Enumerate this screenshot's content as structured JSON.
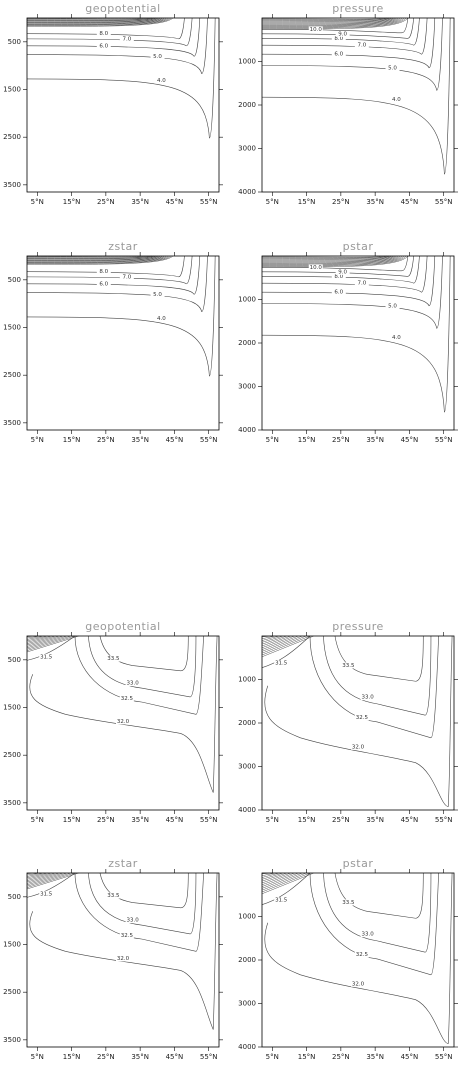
{
  "chart_data": [
    {
      "type": "contour",
      "title": "geopotential",
      "xlim": [
        2,
        58
      ],
      "xticks": [
        {
          "value": 5,
          "label": "5°N"
        },
        {
          "value": 15,
          "label": "15°N"
        },
        {
          "value": 25,
          "label": "25°N"
        },
        {
          "value": 35,
          "label": "35°N"
        },
        {
          "value": 45,
          "label": "45°N"
        },
        {
          "value": 55,
          "label": "55°N"
        }
      ],
      "ylim": [
        0,
        3650
      ],
      "y_inverted": true,
      "yticks": [
        500,
        1500,
        2500,
        3500
      ],
      "style": "temperature",
      "levels": [
        {
          "value": 4,
          "label": "4.0"
        },
        {
          "value": 5,
          "label": "5.0"
        },
        {
          "value": 6,
          "label": "6.0"
        },
        {
          "value": 7,
          "label": "7.0"
        },
        {
          "value": 8,
          "label": "8.0"
        }
      ]
    },
    {
      "type": "contour",
      "title": "pressure",
      "xlim": [
        2,
        58
      ],
      "xticks": [
        {
          "value": 5,
          "label": "5°N"
        },
        {
          "value": 15,
          "label": "15°N"
        },
        {
          "value": 25,
          "label": "25°N"
        },
        {
          "value": 35,
          "label": "35°N"
        },
        {
          "value": 45,
          "label": "45°N"
        },
        {
          "value": 55,
          "label": "55°N"
        }
      ],
      "ylim": [
        0,
        4000
      ],
      "y_inverted": true,
      "yticks": [
        1000,
        2000,
        3000,
        4000
      ],
      "style": "temperature",
      "levels": [
        {
          "value": 4,
          "label": "4.0"
        },
        {
          "value": 5,
          "label": "5.0"
        },
        {
          "value": 6,
          "label": "6.0"
        },
        {
          "value": 7,
          "label": "7.0"
        },
        {
          "value": 8,
          "label": "8.0"
        },
        {
          "value": 9,
          "label": "9.0"
        },
        {
          "value": 10,
          "label": "10.0"
        }
      ]
    },
    {
      "type": "contour",
      "title": "zstar",
      "xlim": [
        2,
        58
      ],
      "xticks": [
        {
          "value": 5,
          "label": "5°N"
        },
        {
          "value": 15,
          "label": "15°N"
        },
        {
          "value": 25,
          "label": "25°N"
        },
        {
          "value": 35,
          "label": "35°N"
        },
        {
          "value": 45,
          "label": "45°N"
        },
        {
          "value": 55,
          "label": "55°N"
        }
      ],
      "ylim": [
        0,
        3650
      ],
      "y_inverted": true,
      "yticks": [
        500,
        1500,
        2500,
        3500
      ],
      "style": "temperature",
      "levels": [
        {
          "value": 4,
          "label": "4.0"
        },
        {
          "value": 5,
          "label": "5.0"
        },
        {
          "value": 6,
          "label": "6.0"
        },
        {
          "value": 7,
          "label": "7.0"
        },
        {
          "value": 8,
          "label": "8.0"
        }
      ]
    },
    {
      "type": "contour",
      "title": "pstar",
      "xlim": [
        2,
        58
      ],
      "xticks": [
        {
          "value": 5,
          "label": "5°N"
        },
        {
          "value": 15,
          "label": "15°N"
        },
        {
          "value": 25,
          "label": "25°N"
        },
        {
          "value": 35,
          "label": "35°N"
        },
        {
          "value": 45,
          "label": "45°N"
        },
        {
          "value": 55,
          "label": "55°N"
        }
      ],
      "ylim": [
        0,
        4000
      ],
      "y_inverted": true,
      "yticks": [
        1000,
        2000,
        3000,
        4000
      ],
      "style": "temperature",
      "levels": [
        {
          "value": 4,
          "label": "4.0"
        },
        {
          "value": 5,
          "label": "5.0"
        },
        {
          "value": 6,
          "label": "6.0"
        },
        {
          "value": 7,
          "label": "7.0"
        },
        {
          "value": 8,
          "label": "8.0"
        },
        {
          "value": 9,
          "label": "9.0"
        },
        {
          "value": 10,
          "label": "10.0"
        }
      ]
    },
    {
      "type": "contour",
      "title": "geopotential",
      "xlim": [
        2,
        58
      ],
      "xticks": [
        {
          "value": 5,
          "label": "5°N"
        },
        {
          "value": 15,
          "label": "15°N"
        },
        {
          "value": 25,
          "label": "25°N"
        },
        {
          "value": 35,
          "label": "35°N"
        },
        {
          "value": 45,
          "label": "45°N"
        },
        {
          "value": 55,
          "label": "55°N"
        }
      ],
      "ylim": [
        0,
        3650
      ],
      "y_inverted": true,
      "yticks": [
        500,
        1500,
        2500,
        3500
      ],
      "style": "salinity",
      "levels": [
        {
          "value": 31.5,
          "label": "31.5"
        },
        {
          "value": 33.5,
          "label": "33.5"
        },
        {
          "value": 33,
          "label": "33.0"
        },
        {
          "value": 32.5,
          "label": "32.5"
        },
        {
          "value": 32,
          "label": "32.0"
        }
      ]
    },
    {
      "type": "contour",
      "title": "pressure",
      "xlim": [
        2,
        58
      ],
      "xticks": [
        {
          "value": 5,
          "label": "5°N"
        },
        {
          "value": 15,
          "label": "15°N"
        },
        {
          "value": 25,
          "label": "25°N"
        },
        {
          "value": 35,
          "label": "35°N"
        },
        {
          "value": 45,
          "label": "45°N"
        },
        {
          "value": 55,
          "label": "55°N"
        }
      ],
      "ylim": [
        0,
        4000
      ],
      "y_inverted": true,
      "yticks": [
        1000,
        2000,
        3000,
        4000
      ],
      "style": "salinity",
      "levels": [
        {
          "value": 31.5,
          "label": "31.5"
        },
        {
          "value": 33.5,
          "label": "33.5"
        },
        {
          "value": 33,
          "label": "33.0"
        },
        {
          "value": 32.5,
          "label": "32.5"
        },
        {
          "value": 32,
          "label": "32.0"
        }
      ]
    },
    {
      "type": "contour",
      "title": "zstar",
      "xlim": [
        2,
        58
      ],
      "xticks": [
        {
          "value": 5,
          "label": "5°N"
        },
        {
          "value": 15,
          "label": "15°N"
        },
        {
          "value": 25,
          "label": "25°N"
        },
        {
          "value": 35,
          "label": "35°N"
        },
        {
          "value": 45,
          "label": "45°N"
        },
        {
          "value": 55,
          "label": "55°N"
        }
      ],
      "ylim": [
        0,
        3650
      ],
      "y_inverted": true,
      "yticks": [
        500,
        1500,
        2500,
        3500
      ],
      "style": "salinity",
      "levels": [
        {
          "value": 31.5,
          "label": "31.5"
        },
        {
          "value": 33.5,
          "label": "33.5"
        },
        {
          "value": 33,
          "label": "33.0"
        },
        {
          "value": 32.5,
          "label": "32.5"
        },
        {
          "value": 32,
          "label": "32.0"
        }
      ]
    },
    {
      "type": "contour",
      "title": "pstar",
      "xlim": [
        2,
        58
      ],
      "xticks": [
        {
          "value": 5,
          "label": "5°N"
        },
        {
          "value": 15,
          "label": "15°N"
        },
        {
          "value": 25,
          "label": "25°N"
        },
        {
          "value": 35,
          "label": "35°N"
        },
        {
          "value": 45,
          "label": "45°N"
        },
        {
          "value": 55,
          "label": "55°N"
        }
      ],
      "ylim": [
        0,
        4000
      ],
      "y_inverted": true,
      "yticks": [
        1000,
        2000,
        3000,
        4000
      ],
      "style": "salinity",
      "levels": [
        {
          "value": 31.5,
          "label": "31.5"
        },
        {
          "value": 33.5,
          "label": "33.5"
        },
        {
          "value": 33,
          "label": "33.0"
        },
        {
          "value": 32.5,
          "label": "32.5"
        },
        {
          "value": 32,
          "label": "32.0"
        }
      ]
    }
  ]
}
